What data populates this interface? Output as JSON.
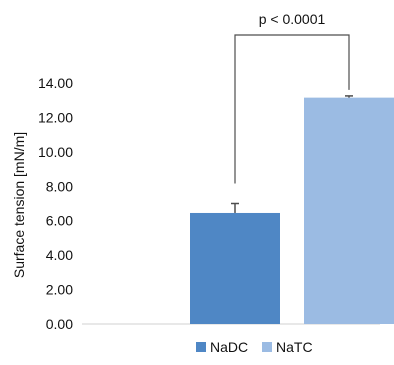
{
  "chart_data": {
    "type": "bar",
    "categories": [
      "NaDC",
      "NaTC"
    ],
    "series": [
      {
        "values": [
          6.45,
          13.15
        ],
        "errors": [
          0.55,
          0.1
        ],
        "colors": [
          "#4f87c5",
          "#9bbbe3"
        ]
      }
    ],
    "ylabel": "Surface tension [mN/m]",
    "ylim": [
      0,
      14
    ],
    "yticks": [
      "0.00",
      "2.00",
      "4.00",
      "6.00",
      "8.00",
      "10.00",
      "12.00",
      "14.00"
    ],
    "annotations": [
      {
        "text": "p < 0.0001",
        "between": [
          "NaDC",
          "NaTC"
        ]
      }
    ],
    "legend": {
      "position": "bottom-center",
      "entries": [
        "NaDC",
        "NaTC"
      ]
    },
    "grid": false
  }
}
